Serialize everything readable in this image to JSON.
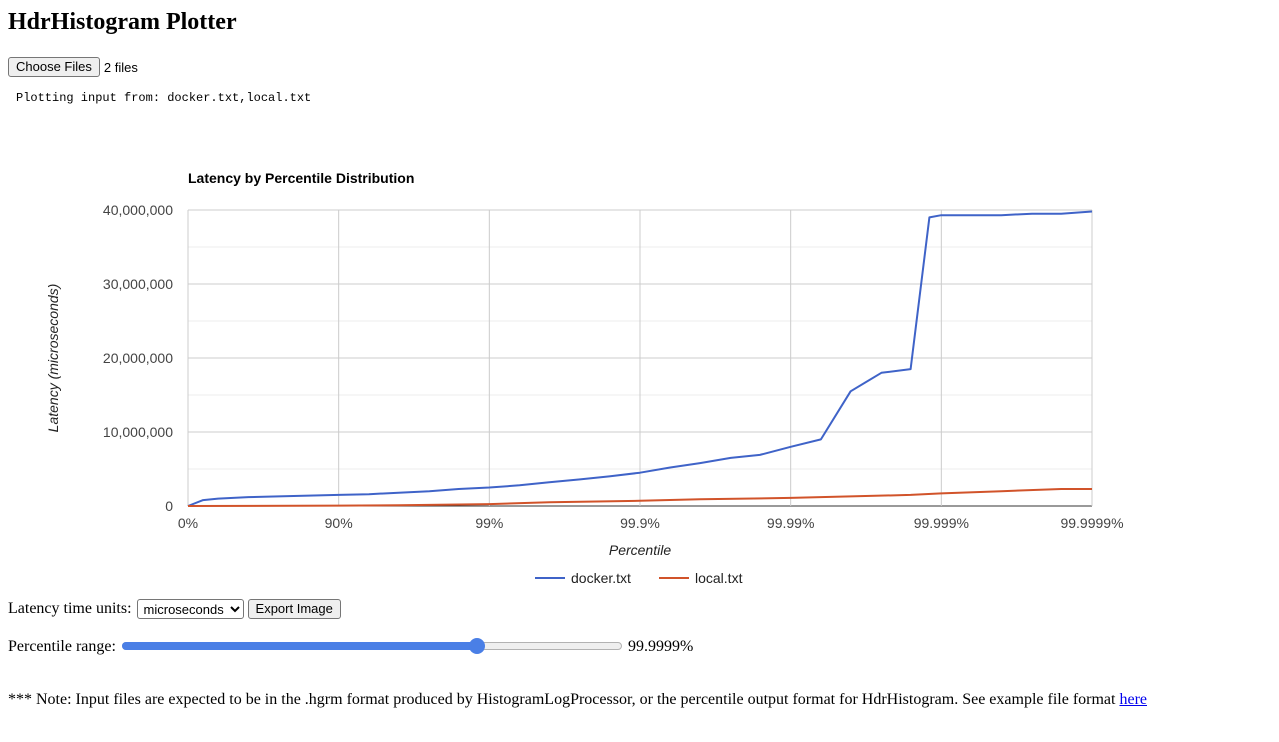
{
  "page": {
    "title": "HdrHistogram Plotter",
    "choose_files_label": "Choose Files",
    "file_count_text": "2 files",
    "plotting_text": "Plotting input from: docker.txt,local.txt",
    "units_label": "Latency time units:",
    "units_selected": "microseconds",
    "export_label": "Export Image",
    "range_label": "Percentile range:",
    "range_value_text": "99.9999%",
    "range_fraction": 0.71,
    "note_text": "*** Note: Input files are expected to be in the .hgrm format produced by HistogramLogProcessor, or the percentile output format for HdrHistogram. See example file format ",
    "note_link_text": "here"
  },
  "colors": {
    "docker": "#3f63c8",
    "local": "#d1532a",
    "slider": "#4a7fe6",
    "link": "#0000ee"
  },
  "chart_data": {
    "type": "line",
    "title": "Latency by Percentile Distribution",
    "xlabel": "Percentile",
    "ylabel": "Latency (microseconds)",
    "x_scale": "log(1/(1-percentile))",
    "x_ticks": [
      "0%",
      "90%",
      "99%",
      "99.9%",
      "99.99%",
      "99.999%",
      "99.9999%"
    ],
    "xlim": [
      "0%",
      "99.9999%"
    ],
    "y_ticks": [
      "0",
      "10,000,000",
      "20,000,000",
      "30,000,000",
      "40,000,000"
    ],
    "ylim": [
      0,
      40000000
    ],
    "grid": true,
    "legend": "bottom",
    "series": [
      {
        "name": "docker.txt",
        "x": [
          "0%",
          "20.6%",
          "36.9%",
          "60.2%",
          "74.9%",
          "84.2%",
          "90%",
          "93.7%",
          "96%",
          "97.5%",
          "98.4%",
          "99%",
          "99.37%",
          "99.6%",
          "99.75%",
          "99.84%",
          "99.9%",
          "99.937%",
          "99.96%",
          "99.975%",
          "99.984%",
          "99.99%",
          "99.9937%",
          "99.996%",
          "99.9975%",
          "99.9984%",
          "99.9988%",
          "99.999%",
          "99.99937%",
          "99.9996%",
          "99.99975%",
          "99.99984%",
          "99.9999%"
        ],
        "values": [
          0,
          800000,
          1000000,
          1200000,
          1300000,
          1400000,
          1500000,
          1600000,
          1800000,
          2000000,
          2300000,
          2500000,
          2800000,
          3200000,
          3600000,
          4000000,
          4500000,
          5200000,
          5800000,
          6500000,
          6900000,
          8000000,
          9000000,
          15500000,
          18000000,
          18500000,
          39000000,
          39300000,
          39300000,
          39300000,
          39500000,
          39500000,
          39800000
        ]
      },
      {
        "name": "local.txt",
        "x": [
          "0%",
          "90%",
          "96%",
          "99%",
          "99.6%",
          "99.9%",
          "99.96%",
          "99.99%",
          "99.996%",
          "99.9984%",
          "99.999%",
          "99.9996%",
          "99.99984%",
          "99.9999%"
        ],
        "values": [
          0,
          50000,
          100000,
          250000,
          500000,
          700000,
          900000,
          1100000,
          1300000,
          1500000,
          1700000,
          2000000,
          2300000,
          2300000
        ]
      }
    ]
  }
}
